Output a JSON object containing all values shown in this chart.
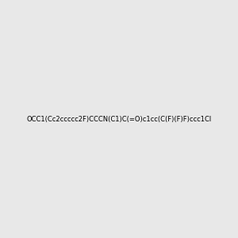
{
  "smiles": "OCC1(Cc2ccccc2F)CCCN(C1)C(=O)c1cc(C(F)(F)F)ccc1Cl",
  "title": "",
  "bg_color": "#e8e8e8",
  "img_size": [
    300,
    300
  ]
}
